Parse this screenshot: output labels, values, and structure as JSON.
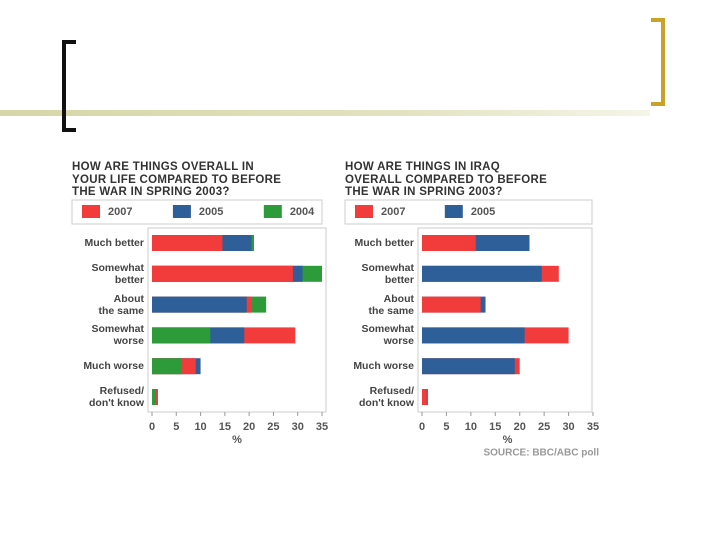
{
  "chart_data": [
    {
      "type": "bar",
      "title": "HOW ARE THINGS OVERALL IN\nYOUR LIFE COMPARED TO BEFORE\nTHE WAR IN SPRING 2003?",
      "categories": [
        "Much better",
        "Somewhat\nbetter",
        "About\nthe same",
        "Somewhat\nworse",
        "Much worse",
        "Refused/\ndon't know"
      ],
      "series": [
        {
          "name": "2007",
          "color": "#f23b3b",
          "values": [
            14.5,
            29,
            20.5,
            29.5,
            9,
            1
          ]
        },
        {
          "name": "2005",
          "color": "#2f5f99",
          "values": [
            20.5,
            31,
            19.5,
            19,
            10,
            1.2
          ]
        },
        {
          "name": "2004",
          "color": "#2e9b3b",
          "values": [
            21,
            35,
            23.5,
            12,
            6,
            0.8
          ]
        }
      ],
      "xlim": [
        0,
        35
      ],
      "xticks": [
        0,
        5,
        10,
        15,
        20,
        25,
        30,
        35
      ],
      "xlabel": "%"
    },
    {
      "type": "bar",
      "title": "HOW ARE THINGS IN IRAQ\nOVERALL COMPARED TO BEFORE\nTHE WAR IN SPRING 2003?",
      "categories": [
        "Much better",
        "Somewhat\nbetter",
        "About\nthe same",
        "Somewhat\nworse",
        "Much worse",
        "Refused/\ndon't know"
      ],
      "series": [
        {
          "name": "2007",
          "color": "#f23b3b",
          "values": [
            11,
            28,
            12,
            30,
            20,
            1
          ]
        },
        {
          "name": "2005",
          "color": "#2f5f99",
          "values": [
            22,
            24.5,
            13,
            21,
            19,
            1.2
          ]
        }
      ],
      "xlim": [
        0,
        35
      ],
      "xticks": [
        0,
        5,
        10,
        15,
        20,
        25,
        30,
        35
      ],
      "xlabel": "%",
      "source": "SOURCE: BBC/ABC poll"
    }
  ]
}
